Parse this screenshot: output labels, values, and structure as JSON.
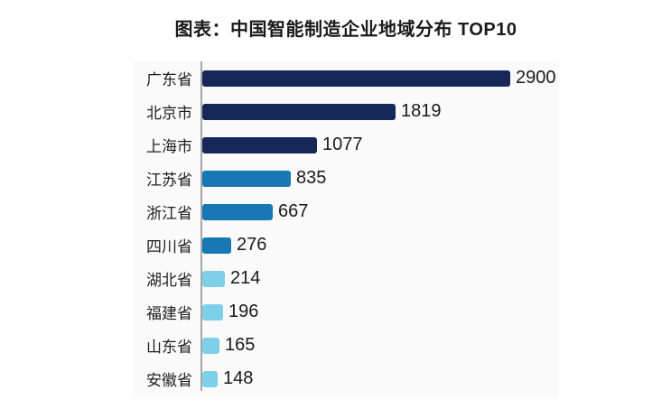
{
  "title": "图表：中国智能制造企业地域分布 TOP10",
  "colors": {
    "dark_navy": "#16285a",
    "medium_blue": "#1878b4",
    "light_blue": "#7ed0e8",
    "axis": "#a6a6a6",
    "text": "#1a1a1a",
    "panel_background": "#fafafa",
    "page_background": "#ffffff"
  },
  "chart_data": {
    "type": "bar",
    "orientation": "horizontal",
    "title": "图表：中国智能制造企业地域分布 TOP10",
    "categories": [
      "广东省",
      "北京市",
      "上海市",
      "江苏省",
      "浙江省",
      "四川省",
      "湖北省",
      "福建省",
      "山东省",
      "安徽省"
    ],
    "values": [
      2900,
      1819,
      1077,
      835,
      667,
      276,
      214,
      196,
      165,
      148
    ],
    "bar_colors": [
      "#16285a",
      "#16285a",
      "#16285a",
      "#1878b4",
      "#1878b4",
      "#1878b4",
      "#7ed0e8",
      "#7ed0e8",
      "#7ed0e8",
      "#7ed0e8"
    ],
    "value_labels": [
      "2900",
      "1819",
      "1077",
      "835",
      "667",
      "276",
      "214",
      "196",
      "165",
      "148"
    ],
    "xlim": [
      0,
      2900
    ],
    "grid": false,
    "legend": false,
    "value_labels_position": "end-of-bar",
    "category_axis": "left"
  }
}
